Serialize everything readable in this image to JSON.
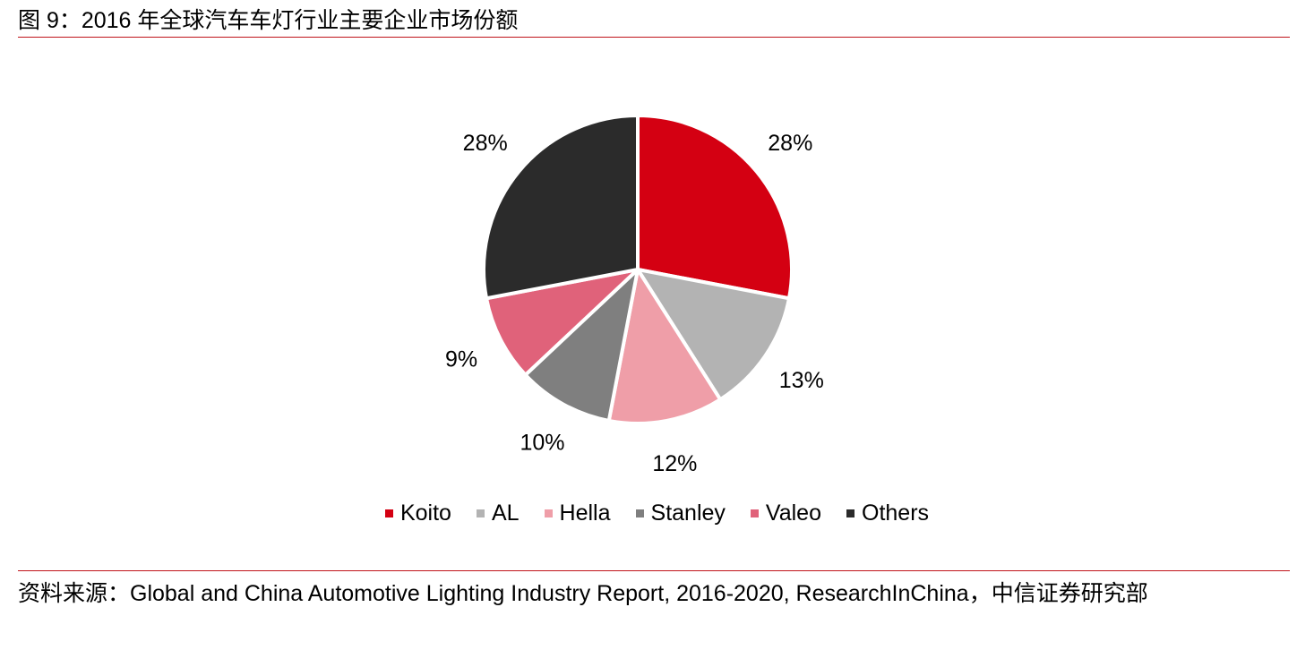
{
  "title": "图 9：2016 年全球汽车车灯行业主要企业市场份额",
  "chart_data": {
    "type": "pie",
    "title": "图 9：2016 年全球汽车车灯行业主要企业市场份额",
    "categories": [
      "Koito",
      "AL",
      "Hella",
      "Stanley",
      "Valeo",
      "Others"
    ],
    "values": [
      28,
      13,
      12,
      10,
      9,
      28
    ],
    "labels": [
      "28%",
      "13%",
      "12%",
      "10%",
      "9%",
      "28%"
    ],
    "colors": [
      "#d40012",
      "#b3b3b3",
      "#ef9ea8",
      "#7f7f7f",
      "#e0627a",
      "#2b2b2b"
    ],
    "start_angle_deg": 0,
    "direction": "clockwise",
    "legend_position": "bottom"
  },
  "source": "资料来源：Global and China Automotive Lighting Industry Report, 2016-2020, ResearchInChina，中信证券研究部"
}
